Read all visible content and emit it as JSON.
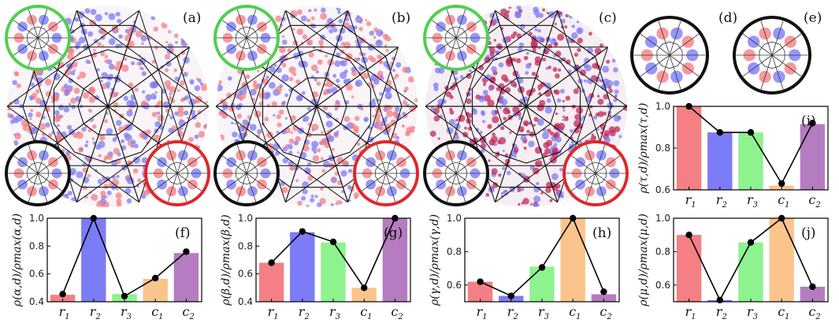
{
  "panel_labels": {
    "a": "(a)",
    "b": "(b)",
    "c": "(c)",
    "d": "(d)",
    "e": "(e)"
  },
  "colors": {
    "red": "#f47f84",
    "blue": "#7c7cf6",
    "green": "#8ef28e",
    "orange": "#fbc48c",
    "purple": "#b57cc1",
    "ring_green": "#4ed14e",
    "ring_black": "#111111",
    "ring_red": "#e0262a"
  },
  "chart_data": [
    {
      "id": "f",
      "type": "bar",
      "label": "(f)",
      "ylabel": "ρ(α,d)/ρmax(α,d)",
      "ylim": [
        0.4,
        1.0
      ],
      "yticks": [
        "0.4",
        "0.6",
        "0.8",
        "1.0"
      ],
      "ytick_values": [
        0.4,
        0.6,
        0.8,
        1.0
      ],
      "categories": [
        "r1",
        "r2",
        "r3",
        "c1",
        "c2"
      ],
      "bar_values": [
        0.45,
        1.0,
        0.455,
        0.565,
        0.75
      ],
      "line_values": [
        0.455,
        1.0,
        0.44,
        0.57,
        0.76
      ]
    },
    {
      "id": "g",
      "type": "bar",
      "label": "(g)",
      "ylabel": "ρ(β,d)/ρmax(β,d)",
      "ylim": [
        0.4,
        1.0
      ],
      "yticks": [
        "0.4",
        "0.6",
        "0.8",
        "1.0"
      ],
      "ytick_values": [
        0.4,
        0.6,
        0.8,
        1.0
      ],
      "categories": [
        "r1",
        "r2",
        "r3",
        "c1",
        "c2"
      ],
      "bar_values": [
        0.68,
        0.9,
        0.825,
        0.5,
        1.0
      ],
      "line_values": [
        0.68,
        0.905,
        0.83,
        0.5,
        1.0
      ]
    },
    {
      "id": "h",
      "type": "bar",
      "label": "(h)",
      "ylabel": "ρ(γ,d)/ρmax(γ,d)",
      "ylim": [
        0.5,
        1.0
      ],
      "yticks": [
        "0.6",
        "0.8",
        "1.0"
      ],
      "ytick_values": [
        0.6,
        0.8,
        1.0
      ],
      "categories": [
        "r1",
        "r2",
        "r3",
        "c1",
        "c2"
      ],
      "bar_values": [
        0.62,
        0.535,
        0.71,
        1.0,
        0.545
      ],
      "line_values": [
        0.62,
        0.535,
        0.705,
        1.0,
        0.56
      ]
    },
    {
      "id": "i",
      "type": "bar",
      "label": "(i)",
      "ylabel": "ρ(τ,d)/ρmax(τ,d)",
      "ylim": [
        0.6,
        1.0
      ],
      "yticks": [
        "0.6",
        "0.8",
        "1.0"
      ],
      "ytick_values": [
        0.6,
        0.8,
        1.0
      ],
      "categories": [
        "r1",
        "r2",
        "r3",
        "c1",
        "c2"
      ],
      "bar_values": [
        1.0,
        0.875,
        0.875,
        0.62,
        0.915
      ],
      "line_values": [
        1.0,
        0.875,
        0.875,
        0.63,
        0.92
      ]
    },
    {
      "id": "j",
      "type": "bar",
      "label": "(j)",
      "ylabel": "ρ(μ,d)/ρmax(μ,d)",
      "ylim": [
        0.5,
        1.0
      ],
      "yticks": [
        "0.6",
        "0.8",
        "1.0"
      ],
      "ytick_values": [
        0.6,
        0.8,
        1.0
      ],
      "categories": [
        "r1",
        "r2",
        "r3",
        "c1",
        "c2"
      ],
      "bar_values": [
        0.9,
        0.51,
        0.855,
        1.0,
        0.59
      ],
      "line_values": [
        0.9,
        0.51,
        0.855,
        1.0,
        0.59
      ]
    }
  ]
}
